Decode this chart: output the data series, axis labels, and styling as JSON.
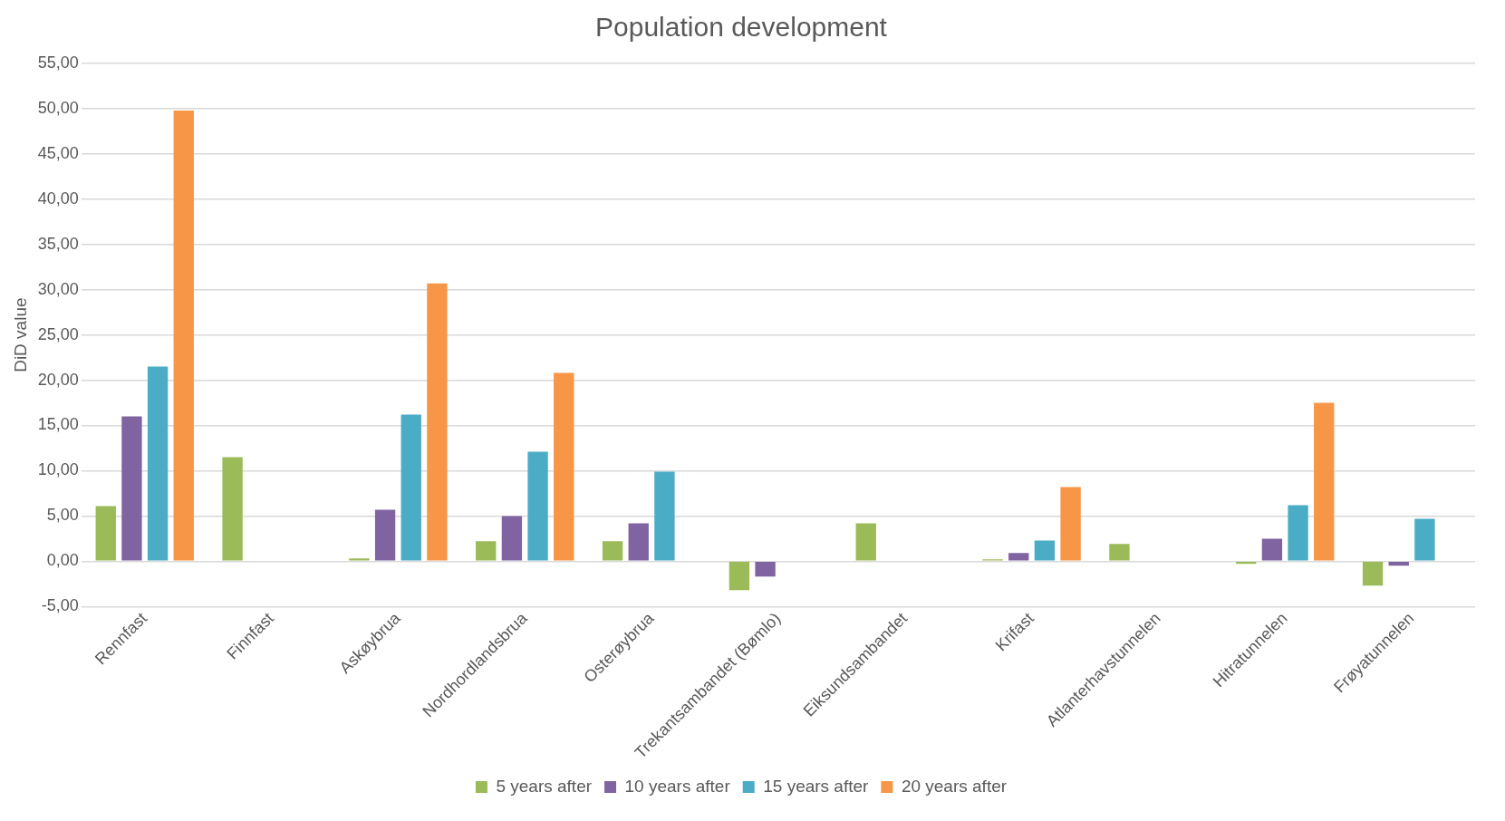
{
  "chart_data": {
    "type": "bar",
    "title": "Population development",
    "ylabel": "DiD value",
    "categories": [
      "Rennfast",
      "Finnfast",
      "Askøybrua",
      "Nordhordlandsbrua",
      "Osterøybrua",
      "Trekantsambandet (Bømlo)",
      "Eiksundsambandet",
      "Krifast",
      "Atlanterhavstunnelen",
      "Hitratunnelen",
      "Frøyatunnelen"
    ],
    "series": [
      {
        "name": "5 years after",
        "color": "#9bbb59",
        "values": [
          6.1,
          11.5,
          0.3,
          2.2,
          2.2,
          -3.2,
          4.2,
          0.2,
          1.9,
          -0.3,
          -2.7
        ]
      },
      {
        "name": "10 years after",
        "color": "#8064a2",
        "values": [
          16.0,
          null,
          5.7,
          5.0,
          4.2,
          -1.7,
          null,
          0.9,
          null,
          2.5,
          -0.5
        ]
      },
      {
        "name": "15 years after",
        "color": "#4bacc6",
        "values": [
          21.5,
          null,
          16.2,
          12.1,
          9.9,
          null,
          null,
          2.3,
          null,
          6.2,
          4.7
        ]
      },
      {
        "name": "20 years after",
        "color": "#f79646",
        "values": [
          49.8,
          null,
          30.7,
          20.8,
          null,
          null,
          null,
          8.2,
          null,
          17.5,
          null
        ]
      }
    ],
    "ylim": [
      -5,
      55
    ],
    "yticks": [
      {
        "value": -5,
        "label": "-5,00"
      },
      {
        "value": 0,
        "label": "0,00"
      },
      {
        "value": 5,
        "label": "5,00"
      },
      {
        "value": 10,
        "label": "10,00"
      },
      {
        "value": 15,
        "label": "15,00"
      },
      {
        "value": 20,
        "label": "20,00"
      },
      {
        "value": 25,
        "label": "25,00"
      },
      {
        "value": 30,
        "label": "30,00"
      },
      {
        "value": 35,
        "label": "35,00"
      },
      {
        "value": 40,
        "label": "40,00"
      },
      {
        "value": 45,
        "label": "45,00"
      },
      {
        "value": 50,
        "label": "50,00"
      },
      {
        "value": 55,
        "label": "55,00"
      }
    ],
    "grid": "y",
    "legend": "bottom"
  }
}
